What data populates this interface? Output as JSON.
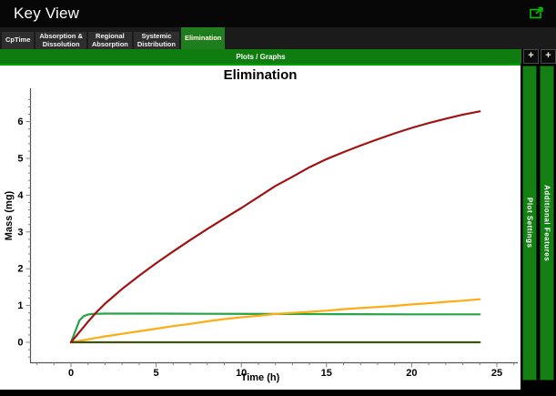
{
  "window": {
    "title": "Key View"
  },
  "tabs": [
    {
      "label": "CpTime",
      "selected": false
    },
    {
      "label": "Absorption &\nDissolution",
      "selected": false
    },
    {
      "label": "Regional\nAbsorption",
      "selected": false
    },
    {
      "label": "Systemic\nDistribution",
      "selected": false
    },
    {
      "label": "Elimination",
      "selected": true
    }
  ],
  "plots_bar": {
    "label": "Plots / Graphs"
  },
  "side_panels": [
    {
      "label": "Plot Settings",
      "button": "+"
    },
    {
      "label": "Additional Features",
      "button": "+"
    }
  ],
  "colors": {
    "titlebar_bg": "#070707",
    "tabbar_bg": "#1b1b1b",
    "tab_bg": "#2e2e2e",
    "selected_tab_green": "#1f7c1f",
    "plots_bar_green": "#0e7c0e",
    "panel_border_green": "#00a300",
    "sidebar_green": "#148014",
    "export_icon_green": "#00c000",
    "plot_bg": "#ffffff",
    "axis_line": "#555555",
    "tick_line": "#808080"
  },
  "chart_data": {
    "type": "line",
    "title": "Elimination",
    "xlabel": "Time (h)",
    "ylabel": "Mass (mg)",
    "xlim": [
      -2.4,
      26.3
    ],
    "ylim": [
      -0.55,
      6.9
    ],
    "x_ticks": [
      0,
      5,
      10,
      15,
      20,
      25
    ],
    "y_ticks": [
      0,
      1,
      2,
      3,
      4,
      5,
      6
    ],
    "x_minor_step": 1,
    "y_minor_step": 0.2,
    "grid": false,
    "legend": null,
    "series": [
      {
        "name": "green",
        "color": "#27a348",
        "points": [
          [
            0,
            0
          ],
          [
            0.25,
            0.3
          ],
          [
            0.5,
            0.6
          ],
          [
            0.75,
            0.71
          ],
          [
            1,
            0.755
          ],
          [
            1.25,
            0.77
          ],
          [
            1.5,
            0.775
          ],
          [
            2,
            0.78
          ],
          [
            3,
            0.78
          ],
          [
            5,
            0.78
          ],
          [
            8,
            0.775
          ],
          [
            12,
            0.77
          ],
          [
            16,
            0.765
          ],
          [
            20,
            0.76
          ],
          [
            24,
            0.76
          ]
        ]
      },
      {
        "name": "orange",
        "color": "#ffac12",
        "points": [
          [
            0,
            0
          ],
          [
            1,
            0.08
          ],
          [
            2,
            0.16
          ],
          [
            3,
            0.23
          ],
          [
            4,
            0.3
          ],
          [
            5,
            0.37
          ],
          [
            6,
            0.44
          ],
          [
            7,
            0.5
          ],
          [
            8,
            0.57
          ],
          [
            9,
            0.63
          ],
          [
            10,
            0.68
          ],
          [
            11,
            0.72
          ],
          [
            12,
            0.77
          ],
          [
            13,
            0.8
          ],
          [
            14,
            0.83
          ],
          [
            15,
            0.86
          ],
          [
            16,
            0.9
          ],
          [
            17,
            0.93
          ],
          [
            18,
            0.96
          ],
          [
            19,
            0.99
          ],
          [
            20,
            1.03
          ],
          [
            21,
            1.06
          ],
          [
            22,
            1.1
          ],
          [
            23,
            1.13
          ],
          [
            24,
            1.17
          ]
        ]
      },
      {
        "name": "dark-olive",
        "color": "#3f520e",
        "points": [
          [
            0,
            0
          ],
          [
            24,
            0
          ]
        ]
      },
      {
        "name": "dark-red",
        "color": "#a01313",
        "points": [
          [
            0,
            0
          ],
          [
            0.5,
            0.28
          ],
          [
            1,
            0.56
          ],
          [
            1.5,
            0.82
          ],
          [
            2,
            1.05
          ],
          [
            3,
            1.45
          ],
          [
            4,
            1.81
          ],
          [
            5,
            2.15
          ],
          [
            6,
            2.47
          ],
          [
            7,
            2.78
          ],
          [
            8,
            3.08
          ],
          [
            9,
            3.37
          ],
          [
            10,
            3.65
          ],
          [
            11,
            3.95
          ],
          [
            12,
            4.25
          ],
          [
            13,
            4.5
          ],
          [
            14,
            4.76
          ],
          [
            15,
            4.98
          ],
          [
            16,
            5.17
          ],
          [
            17,
            5.35
          ],
          [
            18,
            5.52
          ],
          [
            19,
            5.68
          ],
          [
            20,
            5.83
          ],
          [
            21,
            5.96
          ],
          [
            22,
            6.08
          ],
          [
            23,
            6.19
          ],
          [
            24,
            6.28
          ]
        ]
      }
    ]
  }
}
